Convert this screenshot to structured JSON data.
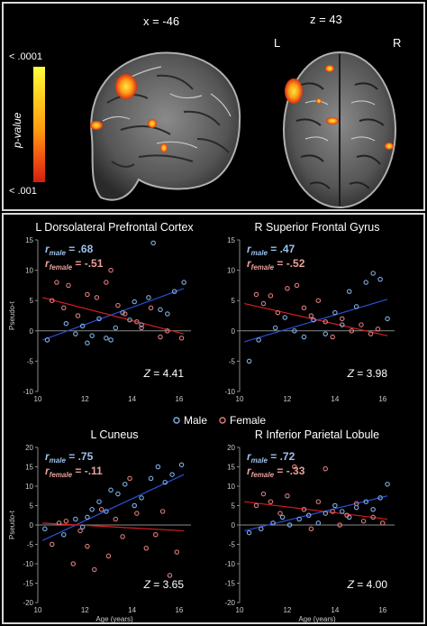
{
  "brain": {
    "sagittal_label": "x = -46",
    "axial_label": "z = 43",
    "left_label": "L",
    "right_label": "R",
    "colorbar_top": "< .0001",
    "colorbar_bottom": "< .001",
    "colorbar_title": "p-value"
  },
  "legend": {
    "male": "Male",
    "female": "Female",
    "male_color": "#7fb0e6",
    "female_color": "#e07c7c"
  },
  "colors": {
    "male_point": "#7fb0e6",
    "female_point": "#e07c7c",
    "male_line": "#2a4fd6",
    "female_line": "#d42020",
    "r_male_text": "#9cc2ec",
    "r_female_text": "#e9a09a"
  },
  "chart_data": [
    {
      "type": "scatter",
      "title": "L Dorsolateral Prefrontal Cortex",
      "ylabel": "Pseudo-t",
      "xlabel": "",
      "xlim": [
        10,
        16.5
      ],
      "ylim": [
        -10,
        15
      ],
      "xticks": [
        10,
        12,
        14,
        16
      ],
      "yticks": [
        -10,
        -5,
        0,
        5,
        10,
        15
      ],
      "r_male_label": "r",
      "r_male_sub": "male",
      "r_male_value": "= .68",
      "r_female_label": "r",
      "r_female_sub": "female",
      "r_female_value": "= -.51",
      "z_label": "Z",
      "z_value": "= 4.41",
      "male_line": [
        [
          10.2,
          -1.5
        ],
        [
          16.2,
          7.0
        ]
      ],
      "female_line": [
        [
          10.2,
          5.5
        ],
        [
          16.2,
          -0.5
        ]
      ],
      "series": [
        {
          "name": "Male",
          "points": [
            [
              10.4,
              -1.5
            ],
            [
              11.2,
              1.2
            ],
            [
              11.6,
              -0.5
            ],
            [
              11.9,
              0.8
            ],
            [
              12.1,
              -2.0
            ],
            [
              12.3,
              -0.8
            ],
            [
              12.6,
              2.0
            ],
            [
              12.9,
              -1.2
            ],
            [
              13.1,
              -1.5
            ],
            [
              13.3,
              0.5
            ],
            [
              13.6,
              3.0
            ],
            [
              13.9,
              1.8
            ],
            [
              14.1,
              4.8
            ],
            [
              14.4,
              1.0
            ],
            [
              14.7,
              5.5
            ],
            [
              14.9,
              14.5
            ],
            [
              15.2,
              3.5
            ],
            [
              15.5,
              2.8
            ],
            [
              15.8,
              6.5
            ],
            [
              16.2,
              8.0
            ]
          ]
        },
        {
          "name": "Female",
          "points": [
            [
              10.6,
              5.0
            ],
            [
              10.8,
              8.0
            ],
            [
              11.1,
              3.8
            ],
            [
              11.3,
              7.5
            ],
            [
              11.7,
              2.5
            ],
            [
              12.1,
              6.0
            ],
            [
              12.5,
              5.5
            ],
            [
              12.9,
              8.0
            ],
            [
              13.1,
              10.0
            ],
            [
              13.4,
              4.2
            ],
            [
              13.7,
              2.8
            ],
            [
              14.2,
              1.5
            ],
            [
              14.4,
              0.5
            ],
            [
              14.8,
              3.8
            ],
            [
              15.2,
              -1.0
            ],
            [
              15.5,
              0.0
            ],
            [
              16.1,
              -1.2
            ]
          ]
        }
      ]
    },
    {
      "type": "scatter",
      "title": "R Superior Frontal Gyrus",
      "ylabel": "",
      "xlabel": "",
      "xlim": [
        10,
        16.5
      ],
      "ylim": [
        -10,
        15
      ],
      "xticks": [
        10,
        12,
        14,
        16
      ],
      "yticks": [
        -10,
        -5,
        0,
        5,
        10,
        15
      ],
      "r_male_label": "r",
      "r_male_sub": "male",
      "r_male_value": "= .47",
      "r_female_label": "r",
      "r_female_sub": "female",
      "r_female_value": "= -.52",
      "z_label": "Z",
      "z_value": "= 3.98",
      "male_line": [
        [
          10.2,
          -1.8
        ],
        [
          16.2,
          5.2
        ]
      ],
      "female_line": [
        [
          10.2,
          4.5
        ],
        [
          16.2,
          -0.8
        ]
      ],
      "series": [
        {
          "name": "Male",
          "points": [
            [
              10.4,
              -5.0
            ],
            [
              10.8,
              -1.5
            ],
            [
              11.5,
              0.5
            ],
            [
              11.9,
              2.2
            ],
            [
              12.3,
              0.0
            ],
            [
              12.7,
              -1.0
            ],
            [
              13.1,
              1.8
            ],
            [
              13.6,
              -0.5
            ],
            [
              14.0,
              3.0
            ],
            [
              14.3,
              1.0
            ],
            [
              14.6,
              6.5
            ],
            [
              14.9,
              4.0
            ],
            [
              15.3,
              8.0
            ],
            [
              15.6,
              9.5
            ],
            [
              15.9,
              8.5
            ],
            [
              16.2,
              2.0
            ]
          ]
        },
        {
          "name": "Female",
          "points": [
            [
              10.7,
              6.0
            ],
            [
              11.0,
              4.5
            ],
            [
              11.3,
              5.8
            ],
            [
              11.6,
              3.0
            ],
            [
              12.0,
              7.0
            ],
            [
              12.4,
              7.5
            ],
            [
              12.7,
              3.8
            ],
            [
              13.0,
              2.5
            ],
            [
              13.3,
              5.0
            ],
            [
              13.6,
              1.5
            ],
            [
              13.9,
              -1.0
            ],
            [
              14.3,
              2.0
            ],
            [
              14.7,
              0.0
            ],
            [
              15.1,
              1.0
            ],
            [
              15.5,
              -0.5
            ],
            [
              15.8,
              0.3
            ]
          ]
        }
      ]
    },
    {
      "type": "scatter",
      "title": "L Cuneus",
      "ylabel": "Pseudo-t",
      "xlabel": "Age (years)",
      "xlim": [
        10,
        16.5
      ],
      "ylim": [
        -20,
        20
      ],
      "xticks": [
        10,
        12,
        14,
        16
      ],
      "yticks": [
        -20,
        -15,
        -10,
        -5,
        0,
        5,
        10,
        15,
        20
      ],
      "r_male_label": "r",
      "r_male_sub": "male",
      "r_male_value": "= .75",
      "r_female_label": "r",
      "r_female_sub": "female",
      "r_female_value": "= -.11",
      "z_label": "Z",
      "z_value": "= 3.65",
      "male_line": [
        [
          10.2,
          -4.0
        ],
        [
          16.2,
          13.0
        ]
      ],
      "female_line": [
        [
          10.2,
          0.5
        ],
        [
          16.2,
          -1.5
        ]
      ],
      "series": [
        {
          "name": "Male",
          "points": [
            [
              10.3,
              -1.0
            ],
            [
              11.1,
              -2.5
            ],
            [
              11.6,
              1.5
            ],
            [
              11.9,
              -0.5
            ],
            [
              12.1,
              2.0
            ],
            [
              12.3,
              4.0
            ],
            [
              12.6,
              6.0
            ],
            [
              12.9,
              3.5
            ],
            [
              13.1,
              9.0
            ],
            [
              13.4,
              8.0
            ],
            [
              13.7,
              10.5
            ],
            [
              14.1,
              5.0
            ],
            [
              14.4,
              7.0
            ],
            [
              14.8,
              12.0
            ],
            [
              15.1,
              15.0
            ],
            [
              15.4,
              11.0
            ],
            [
              15.7,
              13.0
            ],
            [
              16.1,
              15.5
            ]
          ]
        },
        {
          "name": "Female",
          "points": [
            [
              10.6,
              -5.0
            ],
            [
              10.9,
              0.5
            ],
            [
              11.2,
              1.0
            ],
            [
              11.5,
              -10.0
            ],
            [
              11.8,
              -1.5
            ],
            [
              12.1,
              -5.5
            ],
            [
              12.4,
              -11.5
            ],
            [
              12.7,
              4.0
            ],
            [
              13.0,
              -8.0
            ],
            [
              13.3,
              1.5
            ],
            [
              13.6,
              -3.0
            ],
            [
              13.9,
              12.0
            ],
            [
              14.2,
              3.0
            ],
            [
              14.6,
              -6.0
            ],
            [
              15.0,
              -2.5
            ],
            [
              15.3,
              3.5
            ],
            [
              15.6,
              -13.0
            ],
            [
              15.9,
              -7.0
            ]
          ]
        }
      ]
    },
    {
      "type": "scatter",
      "title": "R Inferior Parietal Lobule",
      "ylabel": "",
      "xlabel": "Age (years)",
      "xlim": [
        10,
        16.5
      ],
      "ylim": [
        -20,
        20
      ],
      "xticks": [
        10,
        12,
        14,
        16
      ],
      "yticks": [
        -20,
        -15,
        -10,
        -5,
        0,
        5,
        10,
        15,
        20
      ],
      "r_male_label": "r",
      "r_male_sub": "male",
      "r_male_value": "= .72",
      "r_female_label": "r",
      "r_female_sub": "female",
      "r_female_value": "= -.33",
      "z_label": "Z",
      "z_value": "= 4.00",
      "male_line": [
        [
          10.2,
          -1.5
        ],
        [
          16.2,
          7.5
        ]
      ],
      "female_line": [
        [
          10.2,
          6.0
        ],
        [
          16.2,
          1.5
        ]
      ],
      "series": [
        {
          "name": "Male",
          "points": [
            [
              10.4,
              -2.0
            ],
            [
              10.9,
              -1.0
            ],
            [
              11.4,
              0.5
            ],
            [
              11.8,
              2.0
            ],
            [
              12.1,
              0.0
            ],
            [
              12.5,
              1.5
            ],
            [
              12.9,
              2.5
            ],
            [
              13.3,
              0.5
            ],
            [
              13.6,
              3.0
            ],
            [
              14.0,
              5.0
            ],
            [
              14.3,
              3.5
            ],
            [
              14.6,
              2.0
            ],
            [
              14.9,
              4.5
            ],
            [
              15.3,
              6.0
            ],
            [
              15.6,
              4.0
            ],
            [
              15.9,
              7.0
            ],
            [
              16.2,
              10.5
            ]
          ]
        },
        {
          "name": "Female",
          "points": [
            [
              10.7,
              5.0
            ],
            [
              11.0,
              8.0
            ],
            [
              11.3,
              6.0
            ],
            [
              11.7,
              3.0
            ],
            [
              12.0,
              7.5
            ],
            [
              12.3,
              15.0
            ],
            [
              12.7,
              4.0
            ],
            [
              13.0,
              -1.0
            ],
            [
              13.3,
              6.0
            ],
            [
              13.6,
              14.5
            ],
            [
              13.9,
              3.5
            ],
            [
              14.2,
              0.0
            ],
            [
              14.5,
              2.5
            ],
            [
              14.9,
              5.5
            ],
            [
              15.2,
              1.0
            ],
            [
              15.6,
              2.0
            ],
            [
              16.0,
              0.5
            ]
          ]
        }
      ]
    }
  ]
}
